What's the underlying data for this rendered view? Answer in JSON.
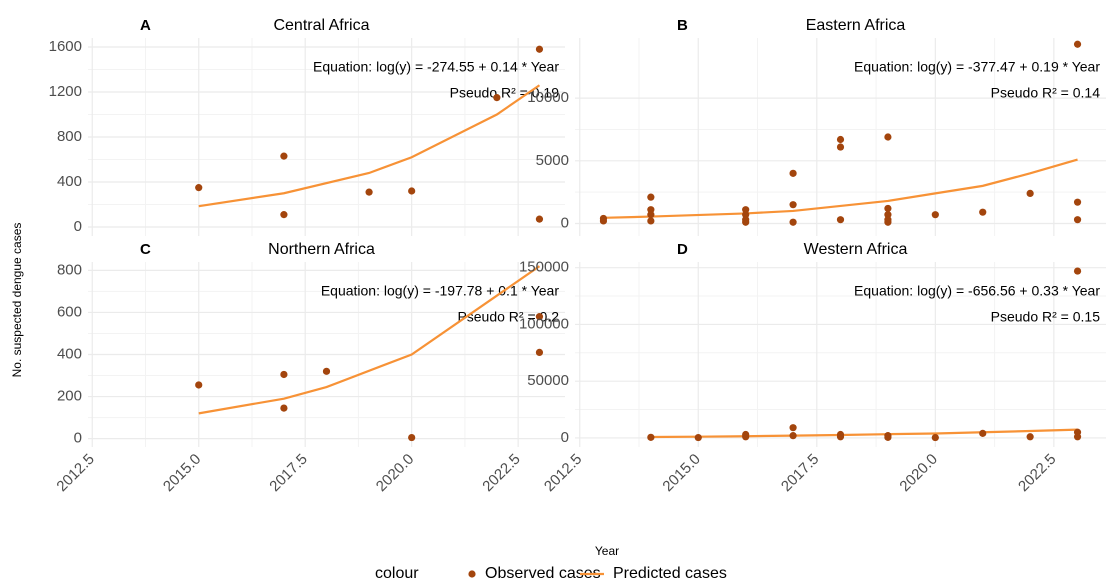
{
  "ylabel": "No. suspected dengue cases",
  "xlabel": "Year",
  "legend_title": "colour",
  "chart_data": [
    {
      "type": "scatter",
      "panel_label": "A",
      "title": "Central Africa",
      "annotations": [
        "Equation: log(y) = -274.55 + 0.14 * Year",
        "Pseudo R² = 0.19"
      ],
      "xlim": [
        2012.4,
        2023.6
      ],
      "xticks": [
        2012.5,
        {
          "value": 2015,
          "label": "2015.0"
        },
        2017.5,
        {
          "value": 2020,
          "label": "2020.0"
        },
        2022.5
      ],
      "ylim": [
        -80,
        1680
      ],
      "yticks": [
        0,
        400,
        800,
        1200,
        1600
      ],
      "grid": true,
      "series": [
        {
          "name": "Observed cases",
          "mode": "points",
          "color": "#a3450d",
          "x": [
            2015,
            2017,
            2017,
            2019,
            2020,
            2022,
            2023,
            2023
          ],
          "values": [
            350,
            630,
            110,
            310,
            320,
            1150,
            1580,
            70
          ]
        },
        {
          "name": "Predicted cases",
          "mode": "line",
          "color": "#f79236",
          "x": [
            2015,
            2017,
            2019,
            2020,
            2022,
            2023
          ],
          "values": [
            185,
            300,
            480,
            620,
            1000,
            1260
          ]
        }
      ]
    },
    {
      "type": "scatter",
      "panel_label": "B",
      "title": "Eastern Africa",
      "annotations": [
        "Equation: log(y) = -377.47 + 0.19 * Year",
        "Pseudo R² = 0.14"
      ],
      "xlim": [
        2012.4,
        2023.6
      ],
      "xticks": [
        2012.5,
        {
          "value": 2015,
          "label": "2015.0"
        },
        2017.5,
        {
          "value": 2020,
          "label": "2020.0"
        },
        2022.5
      ],
      "ylim": [
        -1000,
        14800
      ],
      "yticks": [
        0,
        5000,
        10000
      ],
      "grid": true,
      "series": [
        {
          "name": "Observed cases",
          "mode": "points",
          "color": "#a3450d",
          "x": [
            2013,
            2013,
            2014,
            2014,
            2014,
            2014,
            2016,
            2016,
            2016,
            2016,
            2017,
            2017,
            2017,
            2018,
            2018,
            2018,
            2019,
            2019,
            2019,
            2019,
            2019,
            2020,
            2021,
            2022,
            2023,
            2023,
            2023
          ],
          "values": [
            400,
            200,
            2100,
            1100,
            700,
            200,
            1100,
            700,
            300,
            100,
            4000,
            1500,
            100,
            6700,
            6100,
            300,
            6900,
            1200,
            700,
            300,
            100,
            700,
            900,
            2400,
            14300,
            1700,
            300
          ]
        },
        {
          "name": "Predicted cases",
          "mode": "line",
          "color": "#f79236",
          "x": [
            2013,
            2014,
            2016,
            2017,
            2018,
            2019,
            2020,
            2021,
            2022,
            2023
          ],
          "values": [
            450,
            550,
            800,
            1000,
            1400,
            1800,
            2400,
            3000,
            4000,
            5100
          ]
        }
      ]
    },
    {
      "type": "scatter",
      "panel_label": "C",
      "title": "Northern Africa",
      "annotations": [
        "Equation: log(y) = -197.78 + 0.1 * Year",
        "Pseudo R² = 0.2"
      ],
      "xlim": [
        2012.4,
        2023.6
      ],
      "xticks": [
        2012.5,
        {
          "value": 2015,
          "label": "2015.0"
        },
        2017.5,
        {
          "value": 2020,
          "label": "2020.0"
        },
        2022.5
      ],
      "ylim": [
        -40,
        840
      ],
      "yticks": [
        0,
        200,
        400,
        600,
        800
      ],
      "grid": true,
      "series": [
        {
          "name": "Observed cases",
          "mode": "points",
          "color": "#a3450d",
          "x": [
            2015,
            2017,
            2017,
            2018,
            2020,
            2023,
            2023
          ],
          "values": [
            255,
            305,
            145,
            320,
            5,
            580,
            410
          ]
        },
        {
          "name": "Predicted cases",
          "mode": "line",
          "color": "#f79236",
          "x": [
            2015,
            2017,
            2018,
            2020,
            2023
          ],
          "values": [
            120,
            190,
            245,
            400,
            820
          ]
        }
      ]
    },
    {
      "type": "scatter",
      "panel_label": "D",
      "title": "Western Africa",
      "annotations": [
        "Equation: log(y) = -656.56 + 0.33 * Year",
        "Pseudo R² = 0.15"
      ],
      "xlim": [
        2012.4,
        2023.6
      ],
      "xticks": [
        2012.5,
        {
          "value": 2015,
          "label": "2015.0"
        },
        2017.5,
        {
          "value": 2020,
          "label": "2020.0"
        },
        2022.5
      ],
      "ylim": [
        -8000,
        155000
      ],
      "yticks": [
        0,
        50000,
        100000,
        150000
      ],
      "grid": true,
      "series": [
        {
          "name": "Observed cases",
          "mode": "points",
          "color": "#a3450d",
          "x": [
            2014,
            2015,
            2016,
            2016,
            2017,
            2017,
            2018,
            2018,
            2019,
            2019,
            2020,
            2021,
            2022,
            2023,
            2023,
            2023
          ],
          "values": [
            500,
            300,
            3000,
            1000,
            9000,
            2000,
            3000,
            1000,
            2000,
            500,
            300,
            4000,
            1000,
            147000,
            5000,
            1000
          ]
        },
        {
          "name": "Predicted cases",
          "mode": "line",
          "color": "#f79236",
          "x": [
            2014,
            2015,
            2016,
            2017,
            2018,
            2019,
            2020,
            2021,
            2022,
            2023
          ],
          "values": [
            800,
            1100,
            1500,
            2000,
            2600,
            3300,
            3900,
            5000,
            6100,
            7300
          ]
        }
      ]
    }
  ]
}
